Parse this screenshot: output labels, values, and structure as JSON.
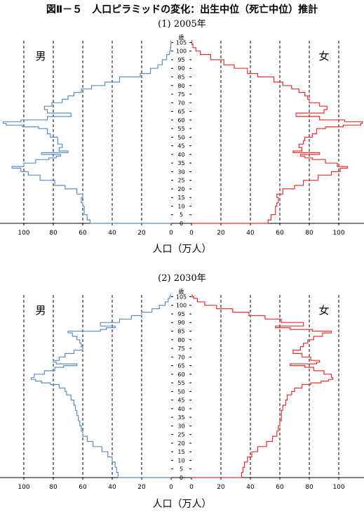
{
  "title": "図Ⅱ－５　人口ピラミッドの変化：出生中位（死亡中位）推計",
  "chart_data": [
    {
      "type": "population-pyramid",
      "subtitle": "(1) 2005年",
      "xlabel": "人口（万人）",
      "age_axis_label": "歳",
      "male_label": "男",
      "female_label": "女",
      "xlim": [
        0,
        115
      ],
      "x_ticks": [
        0,
        20,
        40,
        60,
        80,
        100
      ],
      "age_ticks": [
        0,
        5,
        10,
        15,
        20,
        25,
        30,
        35,
        40,
        45,
        50,
        55,
        60,
        65,
        70,
        75,
        80,
        85,
        90,
        95,
        100,
        105
      ],
      "grid": "vertical dashed at 20, 40, 60, 80, 100",
      "series": [
        {
          "name": "男",
          "color": "#5b8ec4",
          "side": "left",
          "ages": [
            0,
            2,
            5,
            10,
            12,
            15,
            17,
            20,
            22,
            25,
            28,
            30,
            32,
            33,
            35,
            37,
            38,
            39,
            40,
            41,
            42,
            44,
            46,
            48,
            50,
            52,
            55,
            56,
            57,
            58,
            59,
            60,
            62,
            64,
            66,
            68,
            70,
            72,
            74,
            76,
            78,
            80,
            82,
            85,
            87,
            90,
            92,
            95,
            98,
            100,
            102,
            104
          ],
          "values": [
            55,
            57,
            59,
            60,
            61,
            60,
            64,
            72,
            79,
            89,
            97,
            102,
            108,
            100,
            92,
            83,
            78,
            75,
            88,
            70,
            76,
            74,
            77,
            77,
            82,
            84,
            90,
            101,
            112,
            114,
            102,
            84,
            68,
            84,
            86,
            81,
            74,
            70,
            66,
            61,
            54,
            45,
            35,
            21,
            14,
            9,
            6,
            3,
            1,
            0.5,
            0.2,
            0.1
          ]
        },
        {
          "name": "女",
          "color": "#e83030",
          "side": "right",
          "ages": [
            0,
            2,
            5,
            10,
            12,
            15,
            17,
            20,
            22,
            25,
            28,
            30,
            32,
            33,
            35,
            37,
            38,
            39,
            40,
            41,
            42,
            44,
            46,
            48,
            50,
            52,
            55,
            56,
            57,
            58,
            59,
            60,
            62,
            64,
            66,
            68,
            70,
            72,
            74,
            76,
            78,
            80,
            82,
            85,
            87,
            90,
            92,
            95,
            98,
            100,
            102,
            104
          ],
          "values": [
            52,
            54,
            57,
            58,
            59,
            58,
            62,
            70,
            76,
            86,
            95,
            101,
            106,
            99,
            91,
            82,
            77,
            74,
            87,
            69,
            75,
            73,
            76,
            77,
            82,
            85,
            91,
            103,
            115,
            116,
            104,
            87,
            71,
            90,
            92,
            87,
            80,
            79,
            77,
            73,
            68,
            62,
            56,
            45,
            38,
            29,
            22,
            13,
            6,
            3,
            1,
            0.3
          ]
        }
      ]
    },
    {
      "type": "population-pyramid",
      "subtitle": "(2) 2030年",
      "xlabel": "人口（万人）",
      "age_axis_label": "歳",
      "male_label": "男",
      "female_label": "女",
      "xlim": [
        0,
        115
      ],
      "x_ticks": [
        0,
        20,
        40,
        60,
        80,
        100
      ],
      "age_ticks": [
        0,
        5,
        10,
        15,
        20,
        25,
        30,
        35,
        40,
        45,
        50,
        55,
        60,
        65,
        70,
        75,
        80,
        85,
        90,
        95,
        100,
        105
      ],
      "grid": "vertical dashed at 20, 40, 60, 80, 100",
      "series": [
        {
          "name": "男",
          "color": "#5b8ec4",
          "side": "left",
          "ages": [
            0,
            3,
            6,
            9,
            12,
            15,
            18,
            21,
            24,
            27,
            30,
            33,
            36,
            39,
            42,
            45,
            48,
            50,
            52,
            54,
            55,
            56,
            57,
            58,
            60,
            62,
            64,
            65,
            66,
            67,
            68,
            70,
            72,
            74,
            76,
            78,
            80,
            82,
            84,
            85,
            86,
            87,
            88,
            90,
            92,
            94,
            96,
            98,
            100,
            102,
            104,
            105
          ],
          "values": [
            36,
            37,
            38,
            40,
            43,
            47,
            53,
            57,
            60,
            61,
            62,
            63,
            64,
            65,
            66,
            68,
            71,
            72,
            76,
            82,
            88,
            92,
            95,
            93,
            86,
            79,
            73,
            64,
            78,
            80,
            76,
            72,
            66,
            60,
            61,
            62,
            64,
            67,
            70,
            48,
            44,
            38,
            48,
            35,
            27,
            20,
            13,
            8,
            4,
            2,
            1,
            0.5
          ]
        },
        {
          "name": "女",
          "color": "#e83030",
          "side": "right",
          "ages": [
            0,
            3,
            6,
            9,
            12,
            15,
            18,
            21,
            24,
            27,
            30,
            33,
            36,
            39,
            42,
            45,
            48,
            50,
            52,
            54,
            55,
            56,
            57,
            58,
            60,
            62,
            64,
            65,
            66,
            67,
            68,
            70,
            72,
            74,
            76,
            78,
            80,
            82,
            84,
            85,
            86,
            87,
            88,
            90,
            92,
            94,
            96,
            98,
            100,
            102,
            104,
            105
          ],
          "values": [
            34,
            35,
            36,
            38,
            41,
            45,
            51,
            55,
            58,
            59,
            60,
            61,
            61,
            62,
            64,
            65,
            68,
            70,
            75,
            81,
            88,
            93,
            96,
            95,
            90,
            83,
            77,
            67,
            85,
            87,
            81,
            75,
            69,
            74,
            76,
            79,
            83,
            89,
            95,
            82,
            67,
            57,
            76,
            61,
            50,
            39,
            28,
            17,
            9,
            4,
            1.5,
            0.5
          ]
        }
      ]
    }
  ]
}
